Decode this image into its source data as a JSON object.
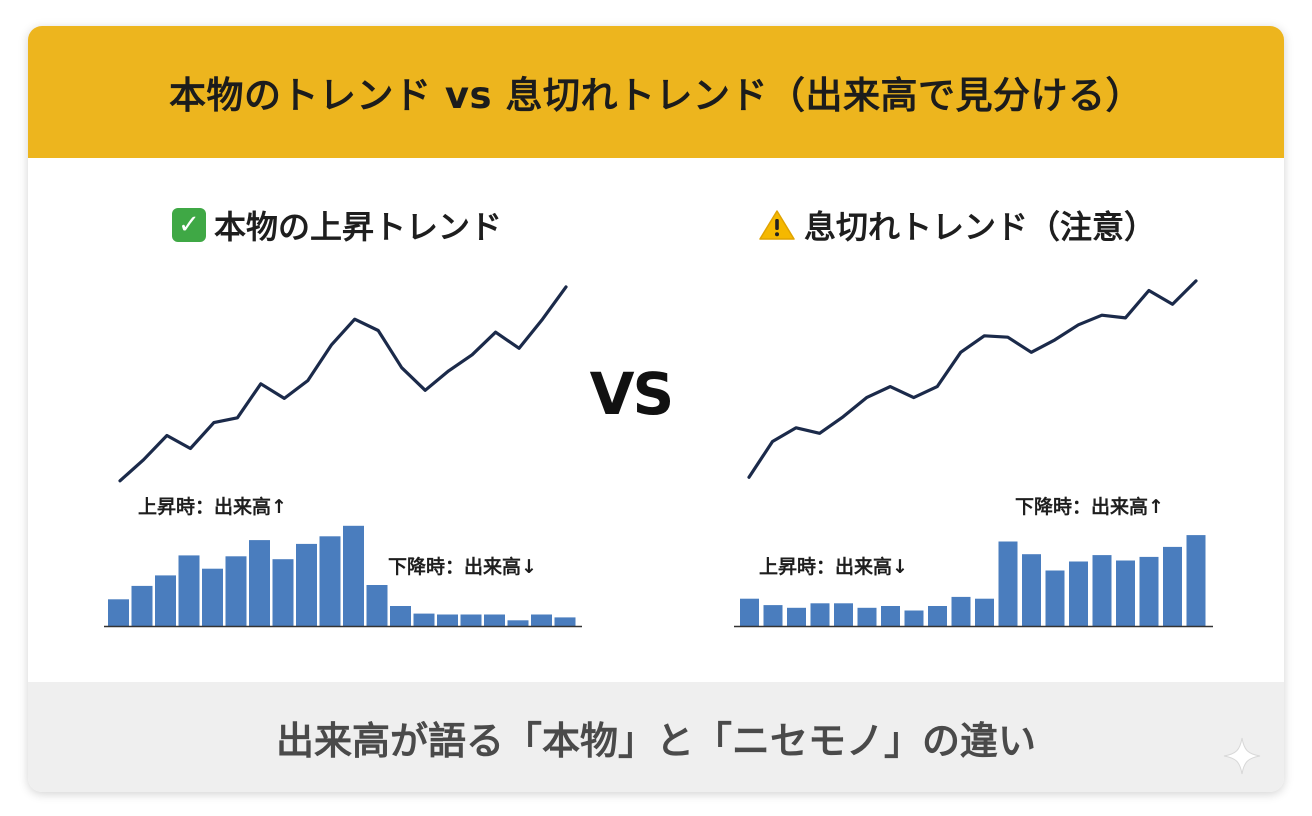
{
  "colors": {
    "banner": "#EDB51E",
    "line": "#1B2A4A",
    "bar": "#4A7DBE",
    "footer_bg": "#EFEFEF",
    "check_badge": "#3FA845",
    "warning": "#F5B800"
  },
  "header": {
    "title": "本物のトレンド vs 息切れトレンド（出来高で見分ける）"
  },
  "vs_label": "VS",
  "footer": {
    "text": "出来高が語る「本物」と「ニセモノ」の違い"
  },
  "icons": {
    "left_title": "check-mark-icon",
    "right_title": "warning-icon",
    "corner": "sparkle-icon"
  },
  "chart_data": [
    {
      "type": "line",
      "title": "本物の上昇トレンド",
      "price": [
        2,
        15,
        30,
        22,
        38,
        41,
        62,
        53,
        64,
        86,
        102,
        95,
        72,
        58,
        70,
        80,
        94,
        84,
        102,
        122
      ],
      "ylim": [
        0,
        130
      ],
      "volume": {
        "type": "bar",
        "values": [
          28,
          42,
          53,
          74,
          60,
          73,
          90,
          70,
          86,
          94,
          105,
          43,
          21,
          13,
          12,
          12,
          12,
          6,
          12,
          9
        ],
        "ylim": [
          0,
          110
        ]
      },
      "annotations": [
        {
          "text": "上昇時：出来高↑",
          "at": "volume-left-top"
        },
        {
          "text": "下降時：出来高↓",
          "at": "volume-right"
        }
      ]
    },
    {
      "type": "line",
      "title": "息切れトレンド（注意）",
      "price": [
        2,
        28,
        38,
        34,
        46,
        60,
        68,
        60,
        68,
        93,
        105,
        104,
        93,
        102,
        113,
        120,
        118,
        138,
        128,
        145
      ],
      "ylim": [
        0,
        150
      ],
      "volume": {
        "type": "bar",
        "values": [
          30,
          23,
          20,
          25,
          25,
          20,
          22,
          17,
          22,
          32,
          30,
          93,
          79,
          61,
          71,
          78,
          72,
          76,
          87,
          100
        ],
        "ylim": [
          0,
          110
        ]
      },
      "annotations": [
        {
          "text": "上昇時：出来高↓",
          "at": "volume-left"
        },
        {
          "text": "下降時：出来高↑",
          "at": "volume-right-top"
        }
      ]
    }
  ]
}
